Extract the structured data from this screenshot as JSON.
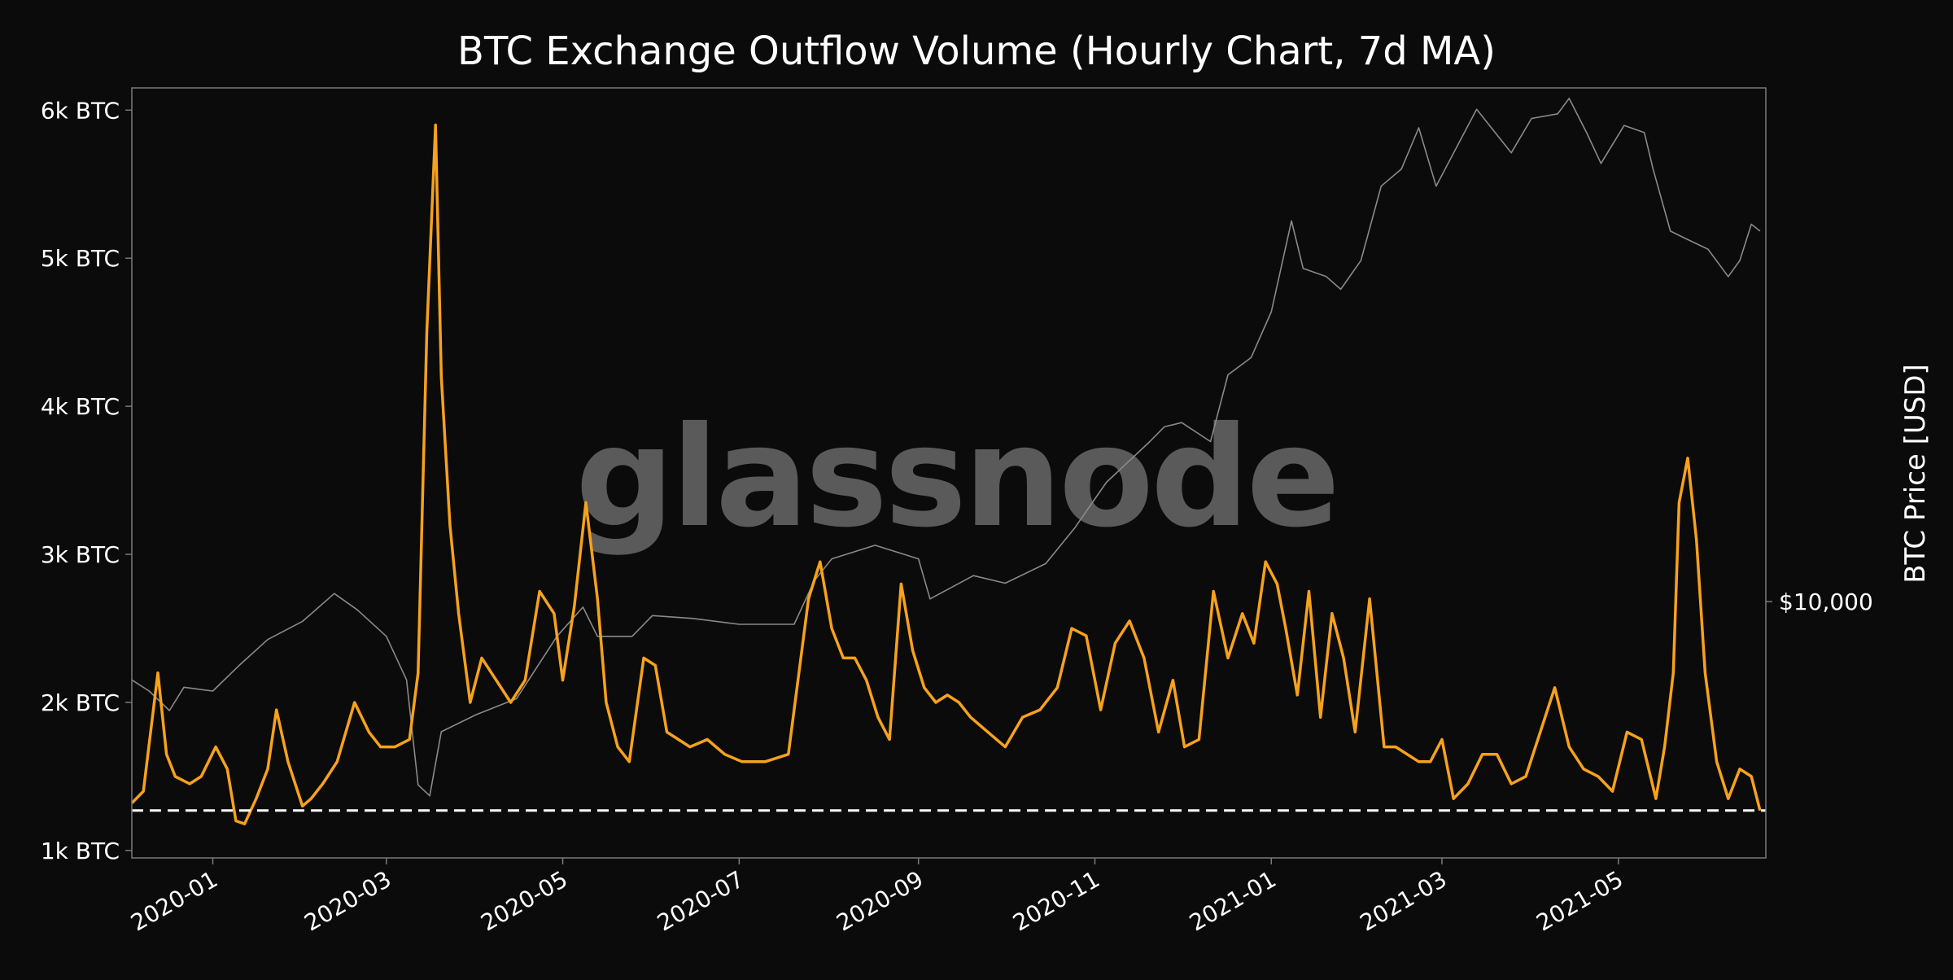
{
  "chart_data": {
    "type": "line",
    "title": "BTC Exchange Outflow Volume (Hourly Chart, 7d MA)",
    "watermark": "glassnode",
    "x_tick_labels": [
      "2020-01",
      "2020-03",
      "2020-05",
      "2020-07",
      "2020-09",
      "2020-11",
      "2021-01",
      "2021-03",
      "2021-05"
    ],
    "x_ticks": [
      "2020-01-01",
      "2020-03-01",
      "2020-05-01",
      "2020-07-01",
      "2020-09-01",
      "2020-11-01",
      "2021-01-01",
      "2021-03-01",
      "2021-05-01"
    ],
    "xlim": [
      "2019-12-04",
      "2021-06-21"
    ],
    "y_left": {
      "label": "",
      "lim": [
        950,
        6150
      ],
      "ticks": [
        1000,
        2000,
        3000,
        4000,
        5000,
        6000
      ],
      "tick_labels": [
        "1k BTC",
        "2k BTC",
        "3k BTC",
        "4k BTC",
        "5k BTC",
        "6k BTC"
      ]
    },
    "y_right": {
      "label": "BTC Price [USD]",
      "scale": "log",
      "lim": [
        3900,
        66000
      ],
      "ticks": [
        10000
      ],
      "tick_labels": [
        "$10,000"
      ]
    },
    "reference_line": {
      "y": 1270,
      "style": "dashed",
      "color": "#ffffff"
    },
    "colors": {
      "background": "#0b0b0b",
      "outflow": "#f7a21b",
      "price": "#8a8a8a",
      "text": "#ffffff",
      "frame": "#7a7a7a",
      "watermark": "#5a5a5a"
    },
    "series": [
      {
        "name": "Exchange Outflow Volume (7d MA)",
        "axis": "left",
        "x": [
          "2019-12-04",
          "2019-12-08",
          "2019-12-13",
          "2019-12-16",
          "2019-12-19",
          "2019-12-24",
          "2019-12-28",
          "2020-01-02",
          "2020-01-06",
          "2020-01-09",
          "2020-01-12",
          "2020-01-16",
          "2020-01-20",
          "2020-01-23",
          "2020-01-27",
          "2020-02-01",
          "2020-02-04",
          "2020-02-08",
          "2020-02-13",
          "2020-02-19",
          "2020-02-24",
          "2020-02-28",
          "2020-03-04",
          "2020-03-09",
          "2020-03-12",
          "2020-03-15",
          "2020-03-18",
          "2020-03-20",
          "2020-03-23",
          "2020-03-26",
          "2020-03-30",
          "2020-04-03",
          "2020-04-08",
          "2020-04-13",
          "2020-04-18",
          "2020-04-23",
          "2020-04-28",
          "2020-05-01",
          "2020-05-05",
          "2020-05-09",
          "2020-05-13",
          "2020-05-16",
          "2020-05-20",
          "2020-05-24",
          "2020-05-29",
          "2020-06-02",
          "2020-06-06",
          "2020-06-10",
          "2020-06-14",
          "2020-06-20",
          "2020-06-26",
          "2020-07-02",
          "2020-07-10",
          "2020-07-18",
          "2020-07-25",
          "2020-07-29",
          "2020-08-02",
          "2020-08-06",
          "2020-08-10",
          "2020-08-14",
          "2020-08-18",
          "2020-08-22",
          "2020-08-26",
          "2020-08-30",
          "2020-09-03",
          "2020-09-07",
          "2020-09-11",
          "2020-09-15",
          "2020-09-19",
          "2020-09-25",
          "2020-10-01",
          "2020-10-07",
          "2020-10-13",
          "2020-10-19",
          "2020-10-24",
          "2020-10-29",
          "2020-11-03",
          "2020-11-08",
          "2020-11-13",
          "2020-11-18",
          "2020-11-23",
          "2020-11-28",
          "2020-12-02",
          "2020-12-07",
          "2020-12-12",
          "2020-12-17",
          "2020-12-22",
          "2020-12-26",
          "2020-12-30",
          "2021-01-03",
          "2021-01-06",
          "2021-01-10",
          "2021-01-14",
          "2021-01-18",
          "2021-01-22",
          "2021-01-26",
          "2021-01-30",
          "2021-02-04",
          "2021-02-09",
          "2021-02-13",
          "2021-02-17",
          "2021-02-21",
          "2021-02-25",
          "2021-03-01",
          "2021-03-05",
          "2021-03-10",
          "2021-03-15",
          "2021-03-20",
          "2021-03-25",
          "2021-03-30",
          "2021-04-04",
          "2021-04-09",
          "2021-04-14",
          "2021-04-19",
          "2021-04-24",
          "2021-04-29",
          "2021-05-04",
          "2021-05-09",
          "2021-05-14",
          "2021-05-17",
          "2021-05-20",
          "2021-05-22",
          "2021-05-25",
          "2021-05-28",
          "2021-05-31",
          "2021-06-04",
          "2021-06-08",
          "2021-06-12",
          "2021-06-16",
          "2021-06-19"
        ],
        "values": [
          1320,
          1400,
          2200,
          1650,
          1500,
          1450,
          1500,
          1700,
          1550,
          1200,
          1180,
          1350,
          1550,
          1950,
          1600,
          1300,
          1350,
          1450,
          1600,
          2000,
          1800,
          1700,
          1700,
          1750,
          2200,
          4500,
          5900,
          4200,
          3200,
          2600,
          2000,
          2300,
          2150,
          2000,
          2150,
          2750,
          2600,
          2150,
          2650,
          3350,
          2700,
          2000,
          1700,
          1600,
          2300,
          2250,
          1800,
          1750,
          1700,
          1750,
          1650,
          1600,
          1600,
          1650,
          2700,
          2950,
          2500,
          2300,
          2300,
          2150,
          1900,
          1750,
          2800,
          2350,
          2100,
          2000,
          2050,
          2000,
          1900,
          1800,
          1700,
          1900,
          1950,
          2100,
          2500,
          2450,
          1950,
          2400,
          2550,
          2300,
          1800,
          2150,
          1700,
          1750,
          2750,
          2300,
          2600,
          2400,
          2950,
          2800,
          2500,
          2050,
          2750,
          1900,
          2600,
          2300,
          1800,
          2700,
          1700,
          1700,
          1650,
          1600,
          1600,
          1750,
          1350,
          1450,
          1650,
          1650,
          1450,
          1500,
          1800,
          2100,
          1700,
          1550,
          1500,
          1400,
          1800,
          1750,
          1350,
          1700,
          2200,
          3350,
          3650,
          3100,
          2200,
          1600,
          1350,
          1550,
          1500,
          1270
        ]
      },
      {
        "name": "BTC Price [USD]",
        "axis": "right",
        "x": [
          "2019-12-04",
          "2019-12-10",
          "2019-12-17",
          "2019-12-22",
          "2020-01-01",
          "2020-01-10",
          "2020-01-20",
          "2020-02-01",
          "2020-02-12",
          "2020-02-20",
          "2020-03-01",
          "2020-03-08",
          "2020-03-12",
          "2020-03-16",
          "2020-03-20",
          "2020-04-01",
          "2020-04-15",
          "2020-04-29",
          "2020-05-08",
          "2020-05-13",
          "2020-05-25",
          "2020-06-01",
          "2020-06-15",
          "2020-07-01",
          "2020-07-20",
          "2020-07-27",
          "2020-08-02",
          "2020-08-17",
          "2020-09-01",
          "2020-09-05",
          "2020-09-20",
          "2020-10-01",
          "2020-10-15",
          "2020-10-25",
          "2020-11-05",
          "2020-11-20",
          "2020-11-25",
          "2020-12-01",
          "2020-12-11",
          "2020-12-17",
          "2020-12-25",
          "2021-01-01",
          "2021-01-08",
          "2021-01-12",
          "2021-01-20",
          "2021-01-25",
          "2021-02-01",
          "2021-02-08",
          "2021-02-15",
          "2021-02-21",
          "2021-02-27",
          "2021-03-13",
          "2021-03-25",
          "2021-04-01",
          "2021-04-10",
          "2021-04-14",
          "2021-04-20",
          "2021-04-25",
          "2021-05-03",
          "2021-05-10",
          "2021-05-13",
          "2021-05-19",
          "2021-05-24",
          "2021-06-01",
          "2021-06-08",
          "2021-06-12",
          "2021-06-16",
          "2021-06-19"
        ],
        "values": [
          7500,
          7200,
          6700,
          7300,
          7200,
          7900,
          8700,
          9300,
          10300,
          9700,
          8800,
          7500,
          5100,
          4900,
          6200,
          6600,
          7000,
          8800,
          9800,
          8800,
          8800,
          9500,
          9400,
          9200,
          9200,
          10800,
          11700,
          12300,
          11700,
          10100,
          11000,
          10700,
          11500,
          13100,
          15500,
          18000,
          19000,
          19300,
          18000,
          23000,
          24500,
          29000,
          40500,
          34000,
          33000,
          31500,
          35000,
          46000,
          49000,
          57000,
          46000,
          61000,
          52000,
          59000,
          60000,
          63500,
          56000,
          50000,
          57500,
          56000,
          49000,
          39000,
          38000,
          36500,
          33000,
          35000,
          40000,
          39000
        ]
      }
    ]
  }
}
